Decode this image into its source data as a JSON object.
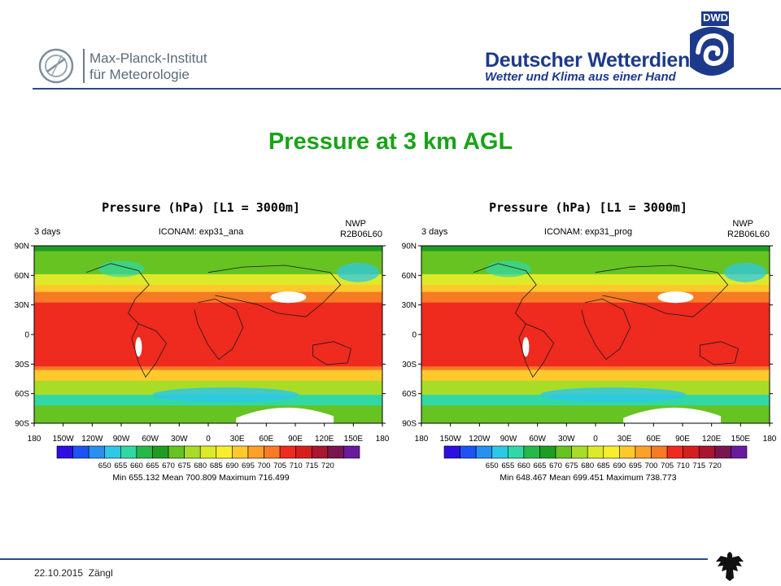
{
  "header": {
    "mpi_line1": "Max-Planck-Institut",
    "mpi_line2": "für Meteorologie",
    "dwd_name": "Deutscher Wetterdienst",
    "dwd_tagline": "Wetter und Klima aus einer Hand",
    "dwd_abbr": "DWD"
  },
  "slide_title": "Pressure at 3 km AGL",
  "footer": {
    "date": "22.10.2015",
    "author": "Zängl"
  },
  "colors": {
    "title_green": "#19a319",
    "brand_blue": "#1d3a8a",
    "line_blue": "#2c4a8c"
  },
  "chart_data": [
    {
      "type": "heatmap",
      "title": "Pressure (hPa)   [L1 = 3000m]",
      "left_label": "3 days",
      "center_label": "ICONAM: exp31_ana",
      "right_label_1": "NWP",
      "right_label_2": "R2B06L60",
      "y_ticks": [
        "90N",
        "60N",
        "30N",
        "0",
        "30S",
        "60S",
        "90S"
      ],
      "x_ticks": [
        "180",
        "150W",
        "120W",
        "90W",
        "60W",
        "30W",
        "0",
        "30E",
        "60E",
        "90E",
        "120E",
        "150E",
        "180"
      ],
      "colorbar_levels": [
        650,
        655,
        660,
        665,
        670,
        675,
        680,
        685,
        690,
        695,
        700,
        705,
        710,
        715,
        720
      ],
      "colorbar_colors": [
        "#2d0fe0",
        "#1d52f5",
        "#2790f0",
        "#2dc8e6",
        "#31d8a6",
        "#27b84a",
        "#1f9d22",
        "#66c322",
        "#a8dc26",
        "#dcea2a",
        "#f8ee2e",
        "#fdc92d",
        "#fba12a",
        "#f77a25",
        "#ef2a1f",
        "#d51f1f",
        "#a8162f",
        "#7a1550",
        "#6a1a9e"
      ],
      "stats": "Min 655.132   Mean 700.809   Maximum 716.499",
      "min": 655.132,
      "mean": 700.809,
      "max": 716.499
    },
    {
      "type": "heatmap",
      "title": "Pressure (hPa)   [L1 = 3000m]",
      "left_label": "3 days",
      "center_label": "ICONAM: exp31_prog",
      "right_label_1": "NWP",
      "right_label_2": "R2B06L60",
      "y_ticks": [
        "90N",
        "60N",
        "30N",
        "0",
        "30S",
        "60S",
        "90S"
      ],
      "x_ticks": [
        "180",
        "150W",
        "120W",
        "90W",
        "60W",
        "30W",
        "0",
        "30E",
        "60E",
        "90E",
        "120E",
        "150E",
        "180"
      ],
      "colorbar_levels": [
        650,
        655,
        660,
        665,
        670,
        675,
        680,
        685,
        690,
        695,
        700,
        705,
        710,
        715,
        720
      ],
      "colorbar_colors": [
        "#2d0fe0",
        "#1d52f5",
        "#2790f0",
        "#2dc8e6",
        "#31d8a6",
        "#27b84a",
        "#1f9d22",
        "#66c322",
        "#a8dc26",
        "#dcea2a",
        "#f8ee2e",
        "#fdc92d",
        "#fba12a",
        "#f77a25",
        "#ef2a1f",
        "#d51f1f",
        "#a8162f",
        "#7a1550",
        "#6a1a9e"
      ],
      "stats": "Min 648.467   Mean 699.451   Maximum 738.773",
      "min": 648.467,
      "mean": 699.451,
      "max": 738.773
    }
  ]
}
